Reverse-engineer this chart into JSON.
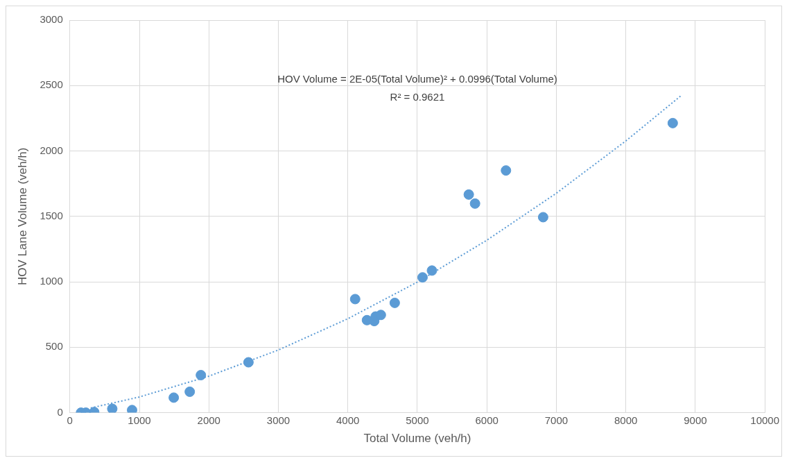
{
  "chart_data": {
    "type": "scatter",
    "xlabel": "Total Volume (veh/h)",
    "ylabel": "HOV Lane Volume (veh/h)",
    "annotations": [
      "HOV Volume = 2E-05(Total Volume)² + 0.0996(Total Volume)",
      "R² = 0.9621"
    ],
    "xlim": [
      0,
      10000
    ],
    "xticks": [
      0,
      1000,
      2000,
      3000,
      4000,
      5000,
      6000,
      7000,
      8000,
      9000,
      10000
    ],
    "ylim": [
      0,
      3000
    ],
    "yticks": [
      0,
      500,
      1000,
      1500,
      2000,
      2500,
      3000
    ],
    "grid": true,
    "marker": "circle",
    "series": [
      {
        "type": "scatter",
        "color": "#5b9bd5",
        "x": [
          160,
          230,
          350,
          610,
          895,
          1495,
          1725,
          1885,
          2570,
          4105,
          4275,
          4380,
          4400,
          4475,
          4675,
          5075,
          5210,
          5740,
          5830,
          6275,
          6810,
          8675
        ],
        "values": [
          0,
          0,
          5,
          30,
          20,
          115,
          160,
          287,
          385,
          868,
          707,
          700,
          735,
          747,
          839,
          1034,
          1086,
          1667,
          1598,
          1851,
          1494,
          2213
        ]
      },
      {
        "type": "line",
        "color": "#5b9bd5",
        "line_style": "dotted",
        "marker": "none",
        "x": [
          300,
          1000,
          2000,
          3000,
          4000,
          5000,
          6000,
          7000,
          8000,
          8800
        ],
        "values": [
          36,
          120,
          279,
          479,
          718,
          998,
          1318,
          1677,
          2077,
          2425
        ]
      }
    ]
  }
}
